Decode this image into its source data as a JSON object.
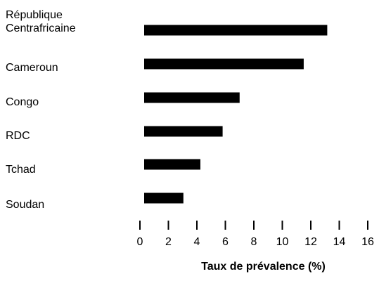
{
  "chart_data": {
    "type": "bar",
    "orientation": "horizontal",
    "categories": [
      "République\nCentrafricaine",
      "Cameroun",
      "Congo",
      "RDC",
      "Tchad",
      "Soudan"
    ],
    "values": [
      14.0,
      12.2,
      7.3,
      6.0,
      4.3,
      3.0
    ],
    "xlabel": "Taux de prévalence (%)",
    "ylabel": "",
    "x_ticks": [
      0,
      2,
      4,
      6,
      8,
      10,
      12,
      14,
      16
    ],
    "xlim": [
      0,
      16
    ],
    "grid": false,
    "bar_color": "#000000"
  }
}
